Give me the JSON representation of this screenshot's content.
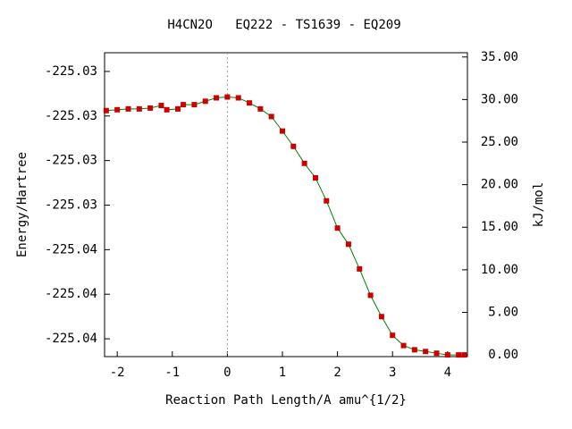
{
  "chart_data": {
    "type": "line",
    "title": "H4CN2O   EQ222 - TS1639 - EQ209",
    "xlabel": "Reaction Path Length/A amu^{1/2}",
    "ylabel": "Energy/Hartree",
    "y2label": "kJ/mol",
    "xlim": [
      -2.23,
      4.36
    ],
    "xticks": [
      -2,
      -1,
      0,
      1,
      2,
      3,
      4
    ],
    "ylim": [
      -225.0403,
      -225.02666
    ],
    "yticks": [
      {
        "value": -225.0395,
        "label": "-225.04"
      },
      {
        "value": -225.0375,
        "label": "-225.04"
      },
      {
        "value": -225.0355,
        "label": "-225.04"
      },
      {
        "value": -225.0335,
        "label": "-225.03"
      },
      {
        "value": -225.0315,
        "label": "-225.03"
      },
      {
        "value": -225.0295,
        "label": "-225.03"
      },
      {
        "value": -225.0275,
        "label": "-225.03"
      }
    ],
    "y2lim": [
      -0.2,
      35.5
    ],
    "y2ticks": [
      {
        "value": 0,
        "label": "0.00"
      },
      {
        "value": 5,
        "label": "5.00"
      },
      {
        "value": 10,
        "label": "10.00"
      },
      {
        "value": 15,
        "label": "15.00"
      },
      {
        "value": 20,
        "label": "20.00"
      },
      {
        "value": 25,
        "label": "25.00"
      },
      {
        "value": 30,
        "label": "30.00"
      },
      {
        "value": 35,
        "label": "35.00"
      }
    ],
    "x": [
      -2.2,
      -2.0,
      -1.8,
      -1.6,
      -1.4,
      -1.2,
      -1.1,
      -0.9,
      -0.8,
      -0.6,
      -0.4,
      -0.2,
      0,
      0.2,
      0.4,
      0.6,
      0.8,
      1.0,
      1.2,
      1.4,
      1.6,
      1.8,
      2.0,
      2.2,
      2.4,
      2.6,
      2.8,
      3.0,
      3.2,
      3.4,
      3.6,
      3.8,
      4.0,
      4.2,
      4.3
    ],
    "series": [
      {
        "axis": "y2",
        "color": "#008000",
        "marker_color": "#cc0000",
        "values": [
          28.7,
          28.8,
          28.9,
          28.9,
          29.0,
          29.3,
          28.8,
          28.9,
          29.4,
          29.4,
          29.8,
          30.2,
          30.3,
          30.2,
          29.6,
          28.9,
          28.0,
          26.3,
          24.5,
          22.5,
          20.8,
          18.1,
          14.9,
          13.0,
          10.1,
          7.0,
          4.5,
          2.3,
          1.1,
          0.6,
          0.4,
          0.2,
          0.0,
          0.0,
          0.0
        ]
      }
    ],
    "ts_line_x": 0
  }
}
